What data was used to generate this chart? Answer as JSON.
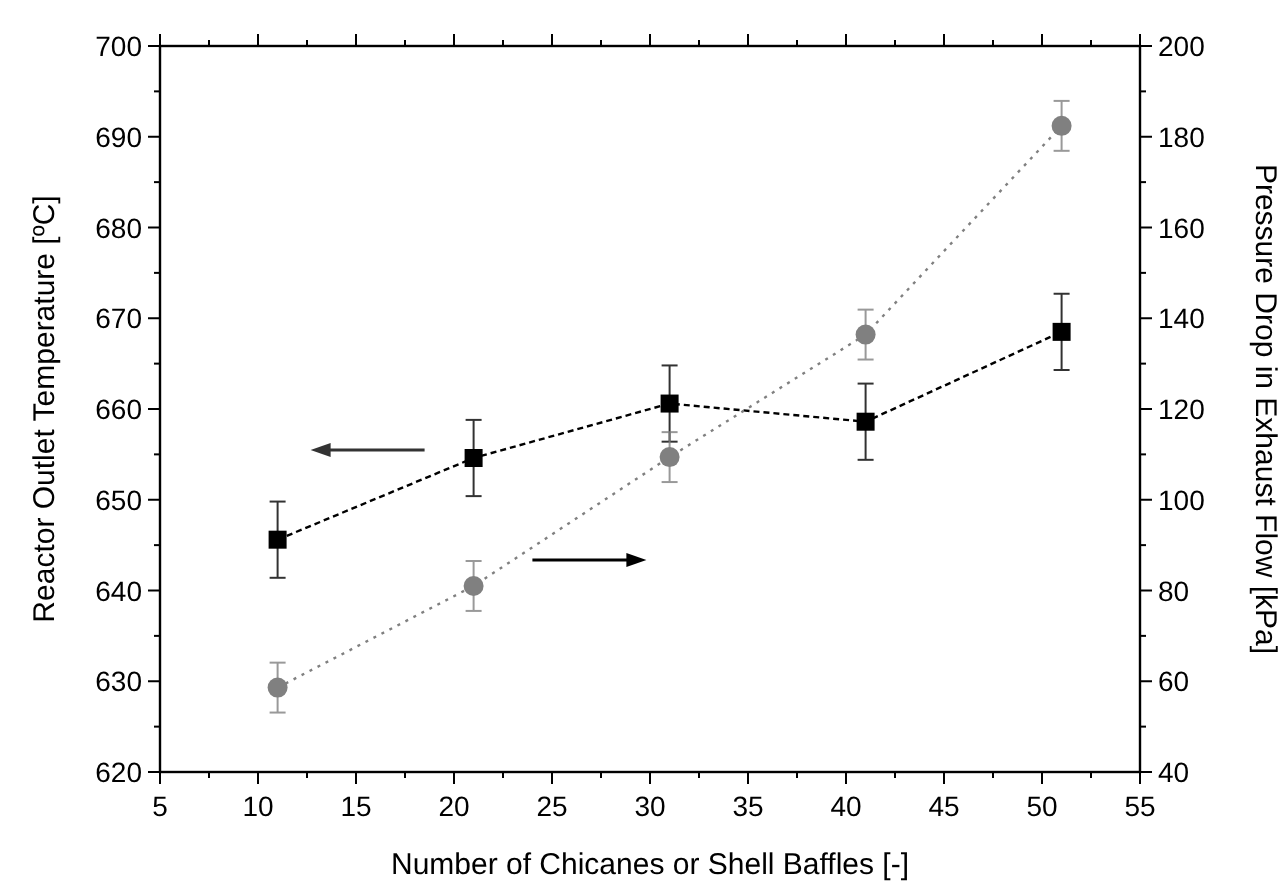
{
  "chart_data": {
    "type": "line",
    "xlabel": "Number of Chicanes or Shell Baffles [-]",
    "ylabel": "Reactor Outlet Temperature [ºC]",
    "y2label": "Pressure Drop in Exhaust Flow [kPa]",
    "x": [
      11,
      21,
      31,
      41,
      51
    ],
    "xlim": [
      5,
      55
    ],
    "xticks": [
      5,
      10,
      15,
      20,
      25,
      30,
      35,
      40,
      45,
      50,
      55
    ],
    "ylim": [
      620,
      700
    ],
    "yticks": [
      620,
      630,
      640,
      650,
      660,
      670,
      680,
      690,
      700
    ],
    "y2lim": [
      40,
      200
    ],
    "y2ticks": [
      40,
      60,
      80,
      100,
      120,
      140,
      160,
      180,
      200
    ],
    "series": [
      {
        "color": "#000000",
        "values": [
          645.6,
          654.6,
          660.6,
          658.6,
          668.5
        ],
        "errors": [
          4.2,
          4.2,
          4.2,
          4.2,
          4.2
        ],
        "marker": "square",
        "line_style": "dashed"
      },
      {
        "color": "#808080",
        "values": [
          58.6,
          81,
          109.4,
          136.4,
          182.4
        ],
        "errors": [
          5.5,
          5.5,
          5.5,
          5.5,
          5.5
        ],
        "marker": "circle",
        "line_style": "dotted",
        "axis": "y2"
      }
    ]
  }
}
